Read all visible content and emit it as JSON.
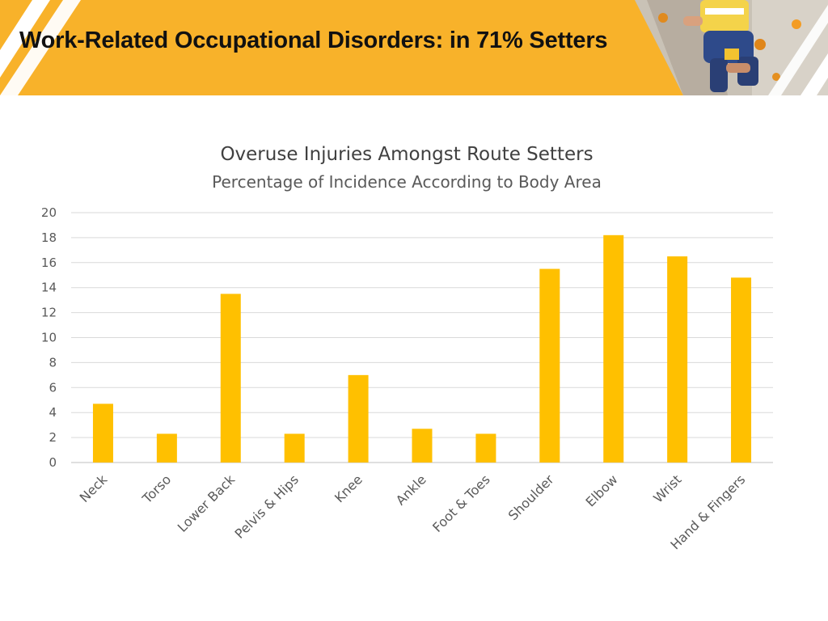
{
  "slide": {
    "title": "Work-Related Occupational Disorders: in 71% Setters"
  },
  "colors": {
    "header_band": "#f8b22a",
    "bar": "#ffc000",
    "stripe": "#ffffff",
    "photo_bg": "#c9c2b6"
  },
  "header_photo": {
    "icon": "climber-photo"
  },
  "chart_data": {
    "type": "bar",
    "title": "Overuse Injuries Amongst Route Setters",
    "subtitle": "Percentage of Incidence According to Body Area",
    "categories": [
      "Neck",
      "Torso",
      "Lower Back",
      "Pelvis & Hips",
      "Knee",
      "Ankle",
      "Foot & Toes",
      "Shoulder",
      "Elbow",
      "Wrist",
      "Hand & Fingers"
    ],
    "values": [
      4.7,
      2.3,
      13.5,
      2.3,
      7.0,
      2.7,
      2.3,
      15.5,
      18.2,
      16.5,
      14.8
    ],
    "yticks": [
      0,
      2,
      4,
      6,
      8,
      10,
      12,
      14,
      16,
      18,
      20
    ],
    "ylim": [
      0,
      20
    ],
    "grid": true,
    "legend": "none"
  }
}
